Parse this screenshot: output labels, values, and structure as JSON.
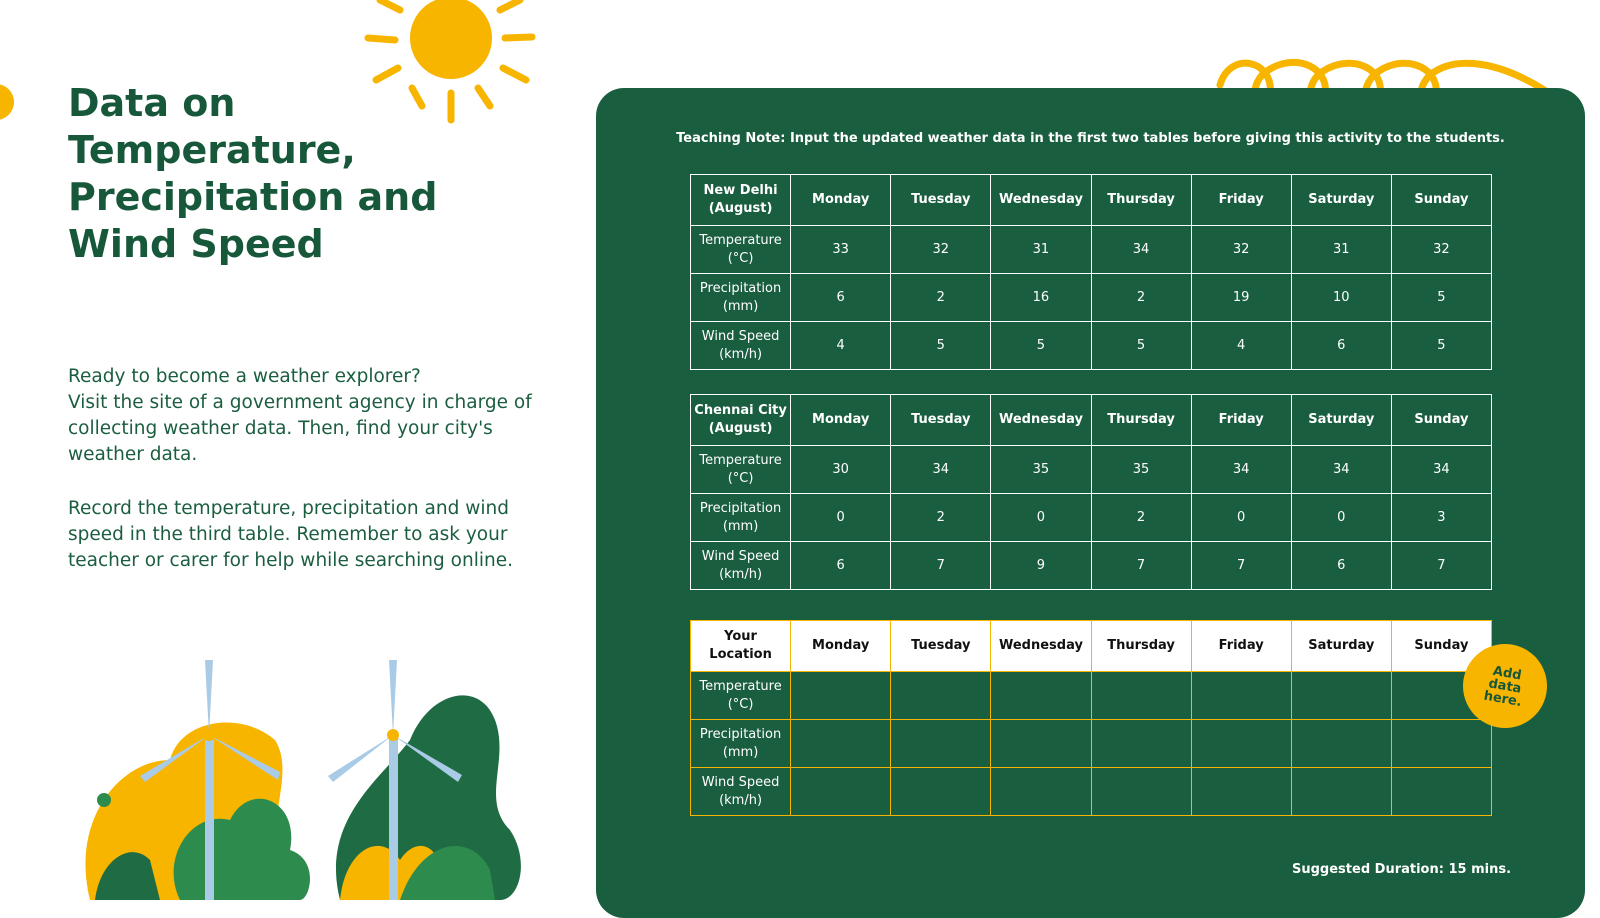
{
  "title": "Data on Temperature, Precipitation and Wind Speed",
  "intro": [
    "Ready to become a weather explorer?",
    "Visit the site of a government agency in charge of collecting weather data. Then, find your city's weather data."
  ],
  "instructions": "Record the temperature, precipitation and wind speed in the third table. Remember to ask your teacher or carer for help while searching online.",
  "teaching_note": "Teaching Note: Input the updated weather data in the first two tables before giving this activity to the students.",
  "tables": [
    {
      "header": [
        "New Delhi (August)",
        "Monday",
        "Tuesday",
        "Wednesday",
        "Thursday",
        "Friday",
        "Saturday",
        "Sunday"
      ],
      "rows": [
        [
          "Temperature (°C)",
          33,
          32,
          31,
          34,
          32,
          31,
          32
        ],
        [
          "Precipitation (mm)",
          6,
          2,
          16,
          2,
          19,
          10,
          5
        ],
        [
          "Wind Speed (km/h)",
          4,
          5,
          5,
          5,
          4,
          6,
          5
        ]
      ]
    },
    {
      "header": [
        "Chennai City (August)",
        "Monday",
        "Tuesday",
        "Wednesday",
        "Thursday",
        "Friday",
        "Saturday",
        "Sunday"
      ],
      "rows": [
        [
          "Temperature (°C)",
          30,
          34,
          35,
          35,
          34,
          34,
          34
        ],
        [
          "Precipitation (mm)",
          0,
          2,
          0,
          2,
          0,
          0,
          3
        ],
        [
          "Wind Speed (km/h)",
          6,
          7,
          9,
          7,
          7,
          6,
          7
        ]
      ]
    },
    {
      "header": [
        "Your Location",
        "Monday",
        "Tuesday",
        "Wednesday",
        "Thursday",
        "Friday",
        "Saturday",
        "Sunday"
      ],
      "rows": [
        [
          "Temperature (°C)"
        ],
        [
          "Precipitation (mm)"
        ],
        [
          "Wind Speed (km/h)"
        ]
      ]
    }
  ],
  "badge": "Add data here.",
  "duration": "Suggested Duration: 15 mins."
}
